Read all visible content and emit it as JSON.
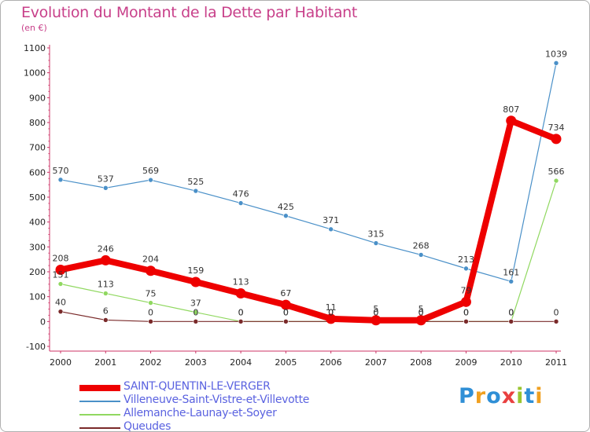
{
  "title": "Evolution du Montant de la Dette par Habitant",
  "unit_label": "(en €)",
  "logo": {
    "text": "Proxiti",
    "letter_colors": [
      "#2f8fd6",
      "#f0a020",
      "#2f8fd6",
      "#e94040",
      "#9ac530",
      "#2f8fd6",
      "#f0a020"
    ]
  },
  "chart_data": {
    "type": "line",
    "title": "Evolution du Montant de la Dette par Habitant",
    "ylabel": "(en €)",
    "xlabel": "",
    "ylim": [
      -100,
      1100
    ],
    "yticks": [
      -100,
      0,
      100,
      200,
      300,
      400,
      500,
      600,
      700,
      800,
      900,
      1000,
      1100
    ],
    "x": [
      "2000",
      "2001",
      "2002",
      "2003",
      "2004",
      "2005",
      "2006",
      "2007",
      "2008",
      "2009",
      "2010",
      "2011"
    ],
    "grid": false,
    "legend_position": "bottom-left",
    "series": [
      {
        "name": "SAINT-QUENTIN-LE-VERGER",
        "color": "#ee0000",
        "values": [
          208,
          246,
          204,
          159,
          113,
          67,
          11,
          5,
          5,
          79,
          807,
          734
        ],
        "labels": [
          "208",
          "246",
          "204",
          "159",
          "113",
          "67",
          "11",
          "5",
          "5",
          "79",
          "807",
          "734"
        ]
      },
      {
        "name": "Villeneuve-Saint-Vistre-et-Villevotte",
        "color": "#4a90c8",
        "values": [
          570,
          537,
          569,
          525,
          476,
          425,
          371,
          315,
          268,
          213,
          161,
          1039
        ],
        "labels": [
          "570",
          "537",
          "569",
          "525",
          "476",
          "425",
          "371",
          "315",
          "268",
          "213",
          "161",
          "1039"
        ]
      },
      {
        "name": "Allemanche-Launay-et-Soyer",
        "color": "#90d860",
        "values": [
          151,
          113,
          75,
          37,
          0,
          0,
          0,
          0,
          0,
          0,
          0,
          566
        ],
        "labels": [
          "151",
          "113",
          "75",
          "37",
          "0",
          "0",
          "0",
          "0",
          "0",
          "0",
          "0",
          "566"
        ]
      },
      {
        "name": "Queudes",
        "color": "#7a2a2a",
        "values": [
          40,
          6,
          0,
          0,
          0,
          0,
          0,
          0,
          0,
          0,
          0,
          0
        ],
        "labels": [
          "40",
          "6",
          "0",
          "0",
          "0",
          "0",
          "0",
          "0",
          "0",
          "0",
          "0",
          "0"
        ]
      }
    ]
  }
}
